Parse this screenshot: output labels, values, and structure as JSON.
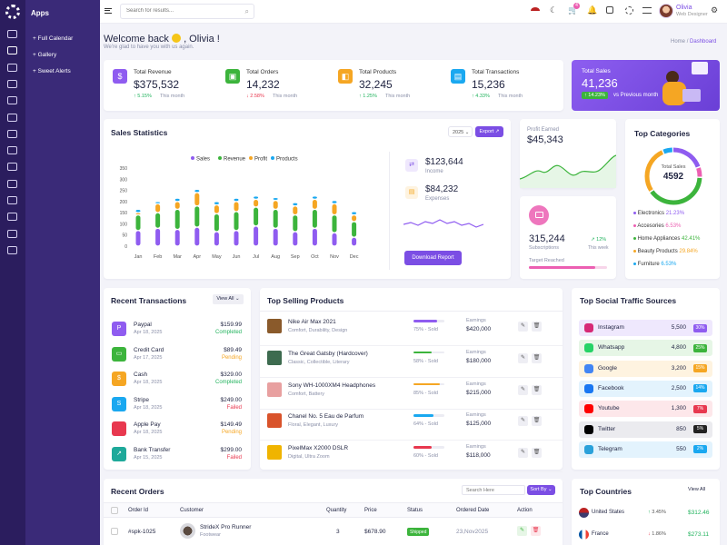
{
  "app": {
    "panel_title": "Apps",
    "panel_items": [
      "Full Calendar",
      "Gallery",
      "Sweet Alerts"
    ]
  },
  "topbar": {
    "search_placeholder": "Search for results...",
    "notif_count": "4",
    "user_name": "Olivia",
    "user_role": "Web Designer"
  },
  "header": {
    "welcome": "Welcome back",
    "welcome_name": ", Olivia !",
    "subtitle": "We're glad to have you with us again.",
    "breadcrumb": [
      "Home",
      "Dashboard"
    ]
  },
  "stats": [
    {
      "label": "Total Revenue",
      "value": "$375,532",
      "change": "5.15%",
      "note": "This month",
      "dir": "up",
      "color": "#8f5cf0",
      "icon": "wallet-icon"
    },
    {
      "label": "Total Orders",
      "value": "14,232",
      "change": "2.58%",
      "note": "This month",
      "dir": "down",
      "color": "#3cb43c",
      "icon": "box-icon"
    },
    {
      "label": "Total Products",
      "value": "32,245",
      "change": "1.25%",
      "note": "This month",
      "dir": "up",
      "color": "#f5a623",
      "icon": "bag-icon"
    },
    {
      "label": "Total Transactions",
      "value": "15,236",
      "change": "4.33%",
      "note": "This month",
      "dir": "up",
      "color": "#1aa8f0",
      "icon": "receipt-icon"
    }
  ],
  "sales_banner": {
    "label": "Total Sales",
    "value": "41,236",
    "change": "14.23%",
    "note": "vs Previous month"
  },
  "sales_stats": {
    "title": "Sales Statistics",
    "year": "2025",
    "export": "Export",
    "legend": [
      "Sales",
      "Revenue",
      "Profit",
      "Products"
    ],
    "income_value": "$123,644",
    "income_label": "Income",
    "expenses_value": "$84,232",
    "expenses_label": "Expenses",
    "download": "Download Report"
  },
  "profit": {
    "label": "Profit Earned",
    "value": "$45,343"
  },
  "subscriptions": {
    "value": "315,244",
    "label": "Subscriptions",
    "change": "12%",
    "note": "This week",
    "target": "Target Reached",
    "target_pct": 0.85
  },
  "categories": {
    "title": "Top Categories",
    "center_label": "Total Sales",
    "center_value": "4592",
    "items": [
      {
        "name": "Electronics",
        "pct": "21.23%",
        "color": "#8f5cf0",
        "value": 21.23
      },
      {
        "name": "Accesories",
        "pct": "6.53%",
        "color": "#ec5fb2",
        "value": 6.53
      },
      {
        "name": "Home Appliances",
        "pct": "42.41%",
        "color": "#3cb43c",
        "value": 42.41
      },
      {
        "name": "Beauty Products",
        "pct": "29.84%",
        "color": "#f5a623",
        "value": 29.84
      },
      {
        "name": "Furniture",
        "pct": "6.53%",
        "color": "#1aa8f0",
        "value": 6.53
      }
    ]
  },
  "transactions": {
    "title": "Recent Transactions",
    "view_all": "View All",
    "items": [
      {
        "name": "Paypal",
        "date": "Apr 18, 2025",
        "amount": "$159.99",
        "status": "Completed",
        "color": "#8f5cf0"
      },
      {
        "name": "Credit Card",
        "date": "Apr 17, 2025",
        "amount": "$89.49",
        "status": "Pending",
        "color": "#3cb43c"
      },
      {
        "name": "Cash",
        "date": "Apr 18, 2025",
        "amount": "$329.00",
        "status": "Completed",
        "color": "#f5a623"
      },
      {
        "name": "Stripe",
        "date": "Apr 18, 2025",
        "amount": "$249.00",
        "status": "Failed",
        "color": "#1aa8f0"
      },
      {
        "name": "Apple Pay",
        "date": "Apr 18, 2025",
        "amount": "$149.49",
        "status": "Pending",
        "color": "#e8384f"
      },
      {
        "name": "Bank Transfer",
        "date": "Apr 15, 2025",
        "amount": "$299.00",
        "status": "Failed",
        "color": "#1ea99a"
      }
    ]
  },
  "products": {
    "title": "Top Selling Products",
    "earnings_label": "Earnings",
    "items": [
      {
        "name": "Nike Air Max 2021",
        "tags": "Comfort, Durability, Design",
        "sold": "75% - Sold",
        "earnings": "$420,000",
        "color": "#8f5cf0",
        "pct": 0.75,
        "thumb": "#8a5a2b"
      },
      {
        "name": "The Great Gatsby (Hardcover)",
        "tags": "Classic, Collectible, Literary",
        "sold": "58% - Sold",
        "earnings": "$180,000",
        "color": "#3cb43c",
        "pct": 0.58,
        "thumb": "#3d6b4f"
      },
      {
        "name": "Sony WH-1000XM4 Headphones",
        "tags": "Comfort, Battery",
        "sold": "85% - Sold",
        "earnings": "$215,000",
        "color": "#f5a623",
        "pct": 0.85,
        "thumb": "#e8a0a0"
      },
      {
        "name": "Chanel No. 5 Eau de Parfum",
        "tags": "Floral, Elegant, Luxury",
        "sold": "64% - Sold",
        "earnings": "$125,000",
        "color": "#1aa8f0",
        "pct": 0.64,
        "thumb": "#d9532b"
      },
      {
        "name": "PixelMax X2000 DSLR",
        "tags": "Digital, Ultra Zoom",
        "sold": "60% - Sold",
        "earnings": "$118,000",
        "color": "#e8384f",
        "pct": 0.6,
        "thumb": "#f0b400"
      }
    ]
  },
  "social": {
    "title": "Top Social Traffic Sources",
    "items": [
      {
        "name": "Instagram",
        "value": "5,500",
        "pct": "30%",
        "bg": "#efe8fd",
        "badge": "#8f5cf0",
        "icon": "instagram-icon",
        "ic": "#d62976"
      },
      {
        "name": "Whatsapp",
        "value": "4,800",
        "pct": "25%",
        "bg": "#e6f6e6",
        "badge": "#3cb43c",
        "icon": "whatsapp-icon",
        "ic": "#25d366"
      },
      {
        "name": "Google",
        "value": "3,200",
        "pct": "15%",
        "bg": "#fef3e0",
        "badge": "#f5a623",
        "icon": "google-icon",
        "ic": "#4285f4"
      },
      {
        "name": "Facebook",
        "value": "2,500",
        "pct": "14%",
        "bg": "#e3f3fd",
        "badge": "#1aa8f0",
        "icon": "facebook-icon",
        "ic": "#1877f2"
      },
      {
        "name": "Youtube",
        "value": "1,300",
        "pct": "7%",
        "bg": "#fde7ea",
        "badge": "#e8384f",
        "icon": "youtube-icon",
        "ic": "#ff0000"
      },
      {
        "name": "Twitter",
        "value": "850",
        "pct": "5%",
        "bg": "#ebebef",
        "badge": "#222",
        "icon": "twitter-x-icon",
        "ic": "#000"
      },
      {
        "name": "Telegram",
        "value": "550",
        "pct": "2%",
        "bg": "#e3f3fd",
        "badge": "#1aa8f0",
        "icon": "telegram-icon",
        "ic": "#2aa1da"
      }
    ]
  },
  "orders": {
    "title": "Recent Orders",
    "search_placeholder": "Search Here",
    "sort": "Sort By",
    "columns": [
      "Order Id",
      "Customer",
      "Quantity",
      "Price",
      "Status",
      "Ordered Date",
      "Action"
    ],
    "rows": [
      {
        "id": "#spk-1025",
        "product": "StrideX Pro Runner",
        "category": "Footwear",
        "qty": "3",
        "price": "$678.90",
        "status": "Shipped",
        "date": "23,Nov2025"
      }
    ]
  },
  "countries": {
    "title": "Top Countries",
    "view_all": "View All",
    "items": [
      {
        "name": "United States",
        "change": "3.45%",
        "value": "$312.46",
        "dir": "up"
      },
      {
        "name": "France",
        "change": "1.86%",
        "value": "$273.11",
        "dir": "down"
      }
    ]
  },
  "chart_data": {
    "type": "bar",
    "categories": [
      "Jan",
      "Feb",
      "Mar",
      "Apr",
      "May",
      "Jun",
      "Jul",
      "Aug",
      "Sep",
      "Oct",
      "Nov",
      "Dec"
    ],
    "ylim": [
      0,
      350
    ],
    "yticks": [
      0,
      50,
      100,
      150,
      200,
      250,
      300,
      350
    ],
    "series": [
      {
        "name": "Sales",
        "color": "#8f5cf0",
        "values": [
          [
            0,
            70
          ],
          [
            0,
            80
          ],
          [
            0,
            75
          ],
          [
            0,
            85
          ],
          [
            0,
            65
          ],
          [
            0,
            70
          ],
          [
            0,
            90
          ],
          [
            0,
            80
          ],
          [
            0,
            65
          ],
          [
            0,
            80
          ],
          [
            0,
            60
          ],
          [
            0,
            40
          ]
        ]
      },
      {
        "name": "Revenue",
        "color": "#3cb43c",
        "values": [
          [
            70,
            140
          ],
          [
            80,
            150
          ],
          [
            75,
            165
          ],
          [
            85,
            180
          ],
          [
            65,
            145
          ],
          [
            70,
            155
          ],
          [
            90,
            175
          ],
          [
            80,
            165
          ],
          [
            65,
            140
          ],
          [
            80,
            165
          ],
          [
            60,
            140
          ],
          [
            40,
            110
          ]
        ]
      },
      {
        "name": "Profit",
        "color": "#f5a623",
        "values": [
          [
            140,
            150
          ],
          [
            150,
            190
          ],
          [
            165,
            200
          ],
          [
            180,
            240
          ],
          [
            145,
            185
          ],
          [
            155,
            200
          ],
          [
            175,
            210
          ],
          [
            165,
            205
          ],
          [
            140,
            180
          ],
          [
            165,
            210
          ],
          [
            140,
            190
          ],
          [
            110,
            140
          ]
        ]
      },
      {
        "name": "Products",
        "color": "#1aa8f0",
        "values": [
          [
            150,
            165
          ],
          [
            190,
            200
          ],
          [
            200,
            215
          ],
          [
            240,
            255
          ],
          [
            185,
            200
          ],
          [
            200,
            215
          ],
          [
            210,
            225
          ],
          [
            205,
            218
          ],
          [
            180,
            195
          ],
          [
            210,
            225
          ],
          [
            190,
            205
          ],
          [
            140,
            155
          ]
        ]
      }
    ]
  }
}
